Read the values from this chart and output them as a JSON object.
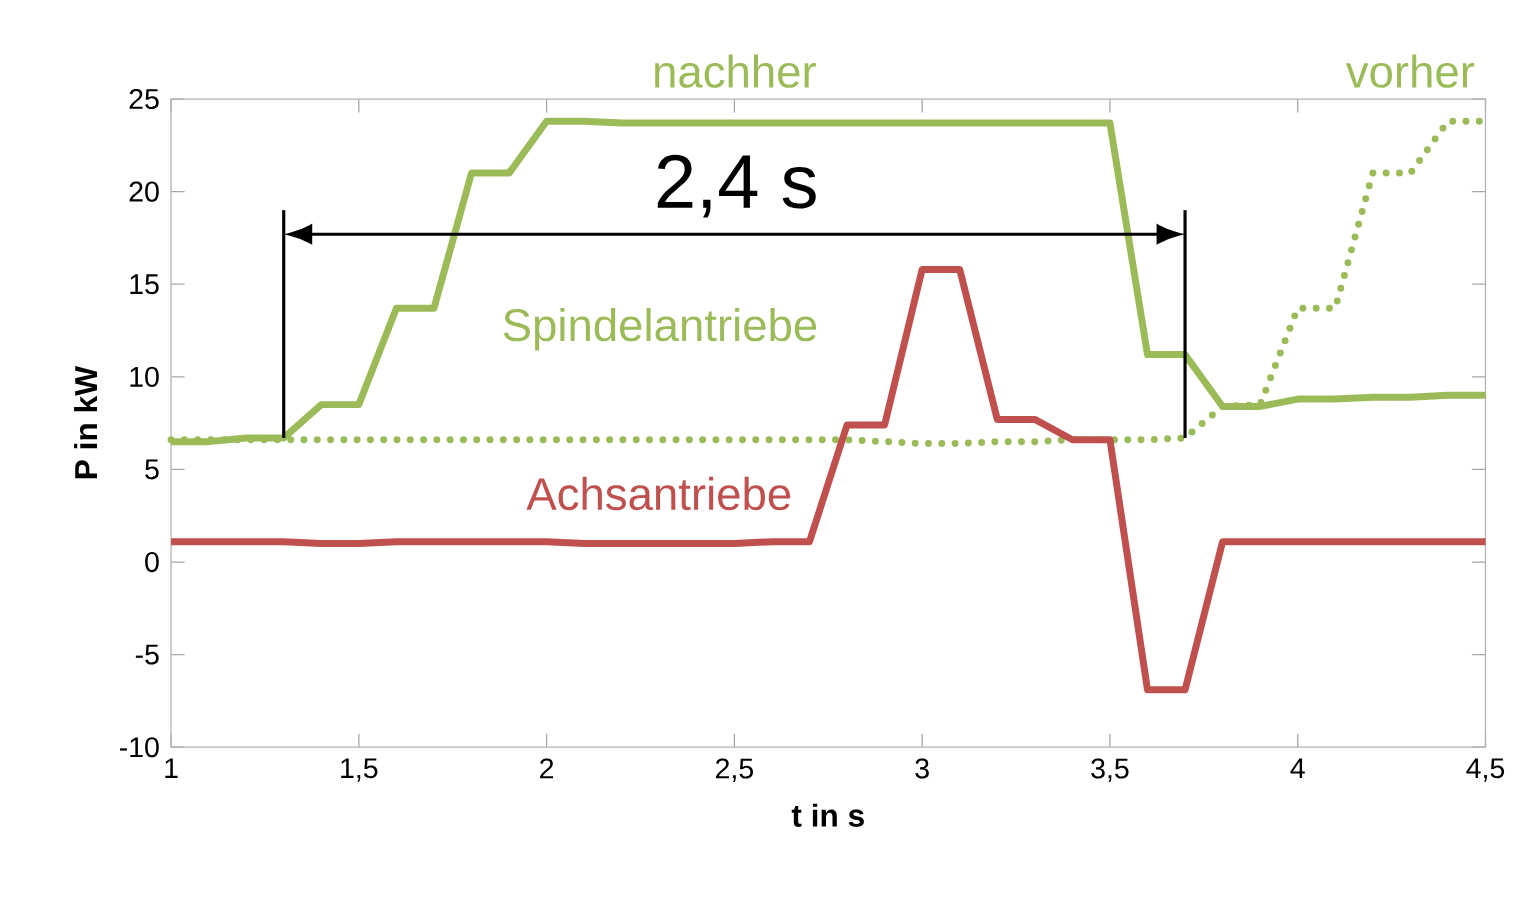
{
  "chart_data": {
    "type": "line",
    "xlabel": "t in s",
    "ylabel": "P in kW",
    "x": [
      1,
      1.1,
      1.2,
      1.3,
      1.4,
      1.5,
      1.6,
      1.7,
      1.8,
      1.9,
      2.0,
      2.1,
      2.2,
      2.3,
      2.4,
      2.5,
      2.6,
      2.7,
      2.8,
      2.9,
      3.0,
      3.1,
      3.2,
      3.3,
      3.4,
      3.5,
      3.6,
      3.7,
      3.8,
      3.9,
      4.0,
      4.1,
      4.2,
      4.3,
      4.4,
      4.5
    ],
    "series": [
      {
        "name": "nachher",
        "color": "#9bbb59",
        "line_style": "solid",
        "values": [
          6.5,
          6.5,
          6.7,
          6.7,
          8.5,
          8.5,
          13.7,
          13.7,
          21,
          21,
          23.8,
          23.8,
          23.7,
          23.7,
          23.7,
          23.7,
          23.7,
          23.7,
          23.7,
          23.7,
          23.7,
          23.7,
          23.7,
          23.7,
          23.7,
          23.7,
          11.2,
          11.2,
          8.4,
          8.4,
          8.8,
          8.8,
          8.9,
          8.9,
          9.0,
          9.0
        ]
      },
      {
        "name": "vorher",
        "color": "#9bbb59",
        "line_style": "dotted",
        "values": [
          6.6,
          6.6,
          6.6,
          6.6,
          6.6,
          6.6,
          6.6,
          6.6,
          6.6,
          6.6,
          6.6,
          6.6,
          6.6,
          6.6,
          6.6,
          6.6,
          6.6,
          6.6,
          6.6,
          6.5,
          6.4,
          6.4,
          6.5,
          6.5,
          6.6,
          6.6,
          6.6,
          6.7,
          8.4,
          8.5,
          13.7,
          13.7,
          21,
          21,
          23.8,
          23.8
        ]
      },
      {
        "name": "Achsantriebe",
        "color": "#c0504d",
        "line_style": "solid",
        "values": [
          1.1,
          1.1,
          1.1,
          1.1,
          1.0,
          1.0,
          1.1,
          1.1,
          1.1,
          1.1,
          1.1,
          1.0,
          1.0,
          1.0,
          1.0,
          1.0,
          1.1,
          1.1,
          7.4,
          7.4,
          15.8,
          15.8,
          7.7,
          7.7,
          6.6,
          6.6,
          -6.9,
          -6.9,
          1.1,
          1.1,
          1.1,
          1.1,
          1.1,
          1.1,
          1.1,
          1.1
        ]
      }
    ],
    "annotations": [
      "2,4 s",
      "Spindelantriebe"
    ],
    "ref_lines": [
      {
        "axis": "x",
        "value": 1.3,
        "color": "#000000"
      },
      {
        "axis": "x",
        "value": 3.7,
        "color": "#000000"
      }
    ],
    "xlim": [
      1,
      4.5
    ],
    "ylim": [
      -10,
      25
    ],
    "xticks": [
      1,
      {
        "value": 1.5,
        "label": "1,5"
      },
      2,
      {
        "value": 2.5,
        "label": "2,5"
      },
      3,
      {
        "value": 3.5,
        "label": "3,5"
      },
      4,
      {
        "value": 4.5,
        "label": "4,5"
      }
    ],
    "yticks": [
      -10,
      -5,
      0,
      5,
      10,
      15,
      20,
      25
    ],
    "marker": "none",
    "grid": false,
    "legend": false
  }
}
